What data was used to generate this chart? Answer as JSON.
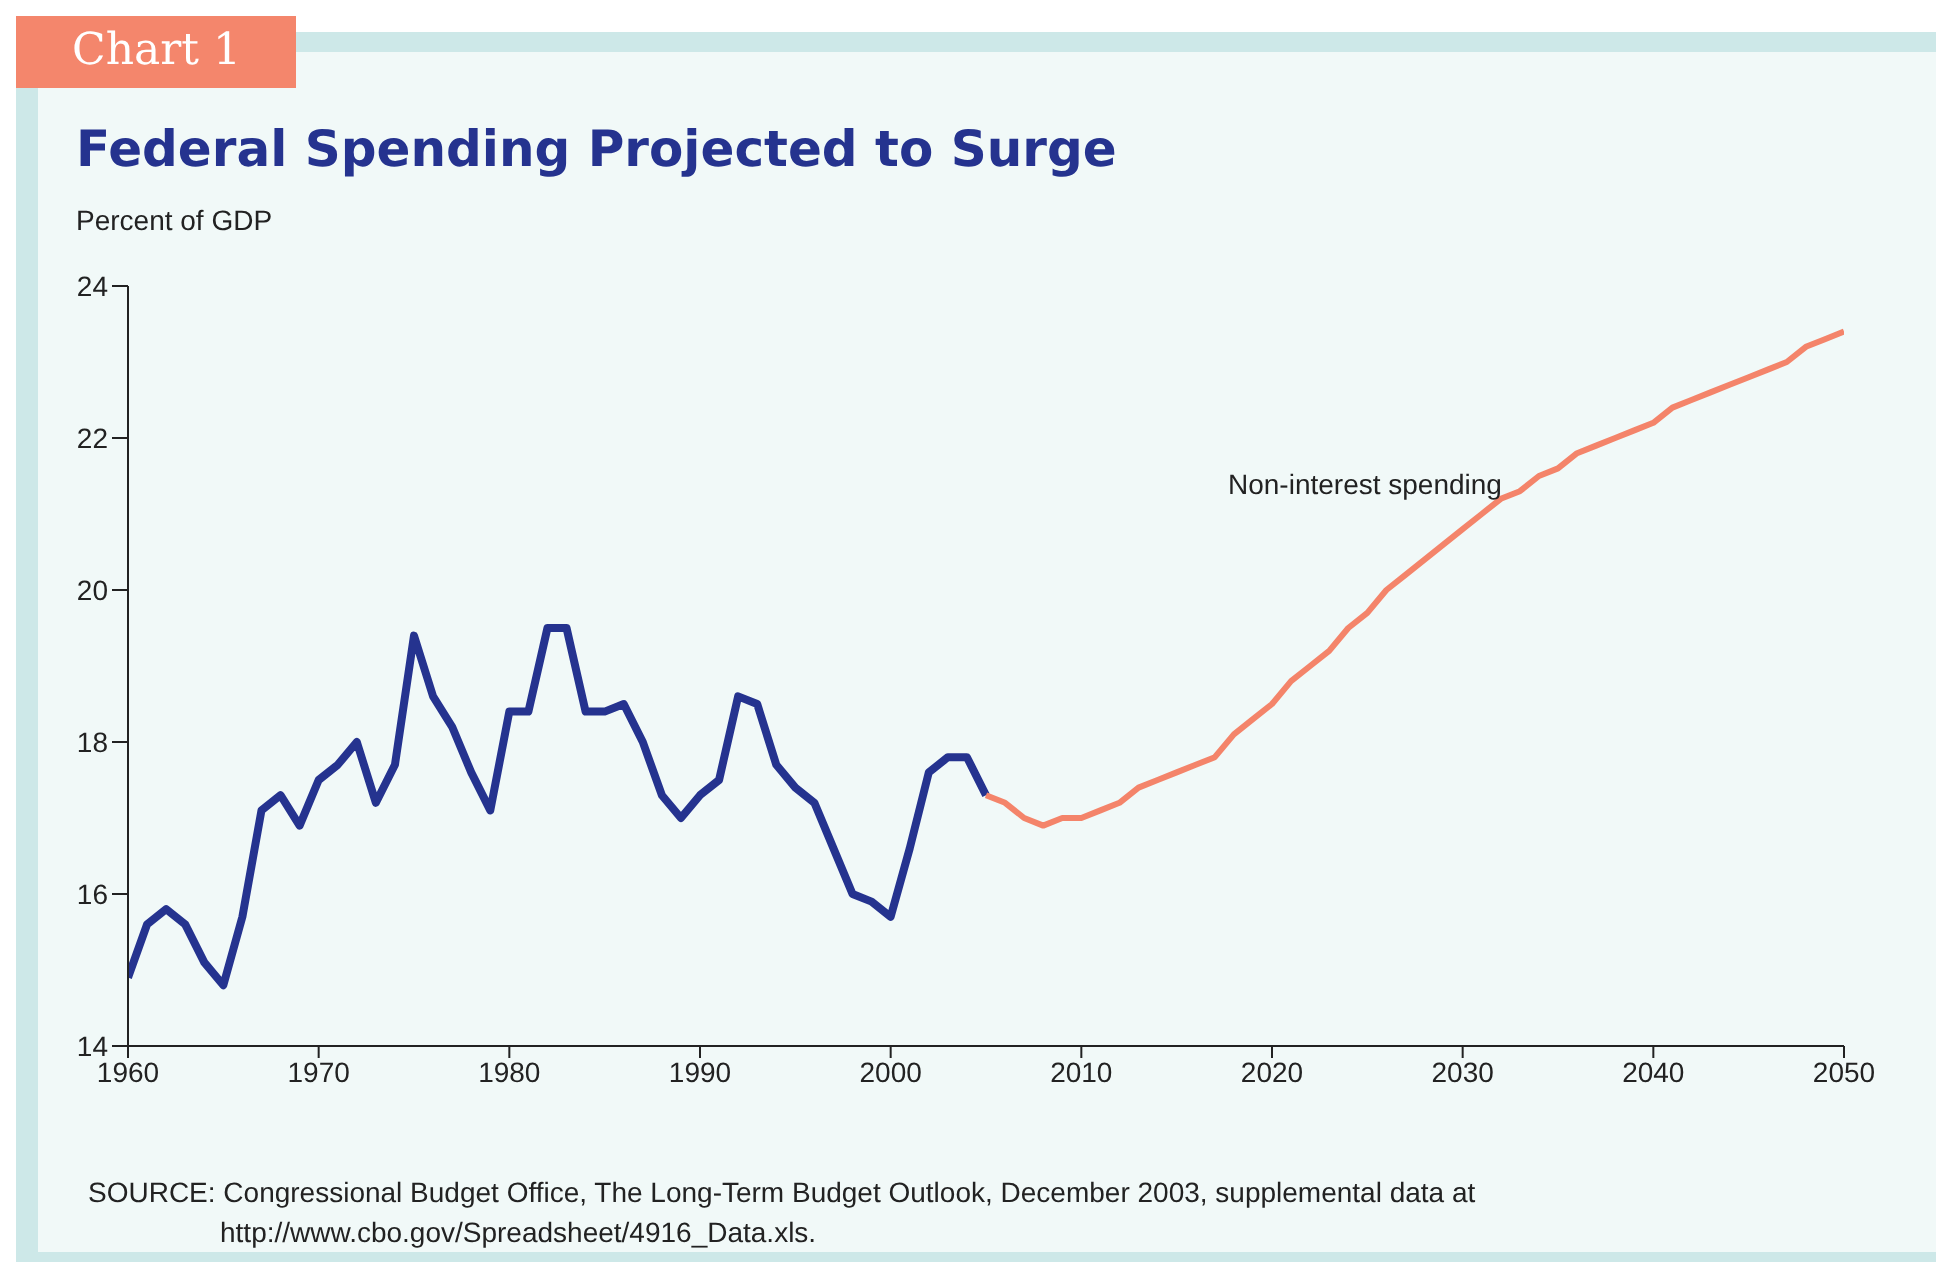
{
  "chart_data": {
    "type": "line",
    "title": "Federal Spending Projected to Surge",
    "ylabel": "Percent of GDP",
    "annotations": [
      "Chart 1",
      "Non-interest spending",
      "SOURCE: Congressional Budget Office, The Long-Term Budget Outlook, December 2003, supplemental data at http://www.cbo.gov/Spreadsheet/4916_Data.xls."
    ],
    "series": [
      {
        "color": "#25338f",
        "x": [
          1960,
          1961,
          1962,
          1963,
          1964,
          1965,
          1966,
          1967,
          1968,
          1969,
          1970,
          1971,
          1972,
          1973,
          1974,
          1975,
          1976,
          1977,
          1978,
          1979,
          1980,
          1981,
          1982,
          1983,
          1984,
          1985,
          1986,
          1987,
          1988,
          1989,
          1990,
          1991,
          1992,
          1993,
          1994,
          1995,
          1996,
          1997,
          1998,
          1999,
          2000,
          2001,
          2002,
          2003,
          2004,
          2005
        ],
        "values": [
          14.9,
          15.6,
          15.8,
          15.6,
          15.1,
          14.8,
          15.7,
          17.1,
          17.3,
          16.9,
          17.5,
          17.7,
          18.0,
          17.2,
          17.7,
          19.4,
          18.6,
          18.2,
          17.6,
          17.1,
          18.4,
          18.4,
          19.5,
          19.5,
          18.4,
          18.4,
          18.5,
          18.0,
          17.3,
          17.0,
          17.3,
          17.5,
          18.6,
          18.5,
          17.7,
          17.4,
          17.2,
          16.6,
          16.0,
          15.9,
          15.7,
          16.6,
          17.6,
          17.8,
          17.8,
          17.3
        ]
      },
      {
        "color": "#f4846a",
        "x": [
          2005,
          2006,
          2007,
          2008,
          2009,
          2010,
          2011,
          2012,
          2013,
          2014,
          2015,
          2016,
          2017,
          2018,
          2019,
          2020,
          2021,
          2022,
          2023,
          2024,
          2025,
          2026,
          2027,
          2028,
          2029,
          2030,
          2031,
          2032,
          2033,
          2034,
          2035,
          2036,
          2037,
          2038,
          2039,
          2040,
          2041,
          2042,
          2043,
          2044,
          2045,
          2046,
          2047,
          2048,
          2049,
          2050
        ],
        "values": [
          17.3,
          17.2,
          17.0,
          16.9,
          17.0,
          17.0,
          17.1,
          17.2,
          17.4,
          17.5,
          17.6,
          17.7,
          17.8,
          18.1,
          18.3,
          18.5,
          18.8,
          19.0,
          19.2,
          19.5,
          19.7,
          20.0,
          20.2,
          20.4,
          20.6,
          20.8,
          21.0,
          21.2,
          21.3,
          21.5,
          21.6,
          21.8,
          21.9,
          22.0,
          22.1,
          22.2,
          22.4,
          22.5,
          22.6,
          22.7,
          22.8,
          22.9,
          23.0,
          23.2,
          23.3,
          23.4
        ]
      }
    ],
    "xlim": [
      1960,
      2050
    ],
    "xticks": [
      1960,
      1970,
      1980,
      1990,
      2000,
      2010,
      2020,
      2030,
      2040,
      2050
    ],
    "ylim": [
      14,
      24
    ],
    "yticks": [
      14,
      16,
      18,
      20,
      22,
      24
    ],
    "grid": false,
    "legend": false,
    "marker": "none",
    "line_style": "solid"
  }
}
